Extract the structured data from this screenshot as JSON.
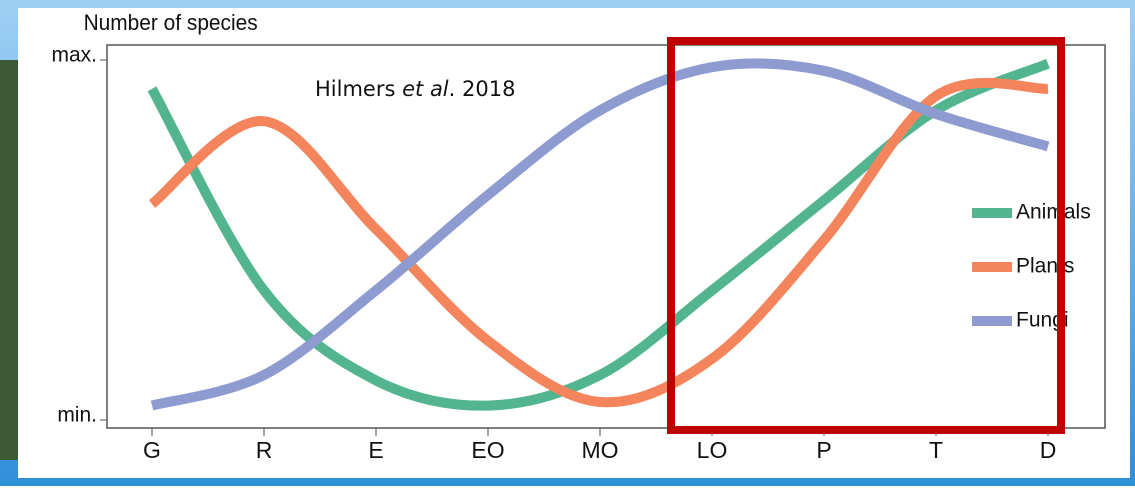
{
  "chart_data": {
    "type": "line",
    "y_label": "Number of species",
    "annotation": [
      "Hilmers",
      "et al",
      ". 2018"
    ],
    "categories": [
      "G",
      "R",
      "E",
      "EO",
      "MO",
      "LO",
      "P",
      "T",
      "D"
    ],
    "series": [
      {
        "name": "Animals",
        "color": "#52b58f",
        "values": [
          0.92,
          0.36,
          0.11,
          0.04,
          0.125,
          0.36,
          0.61,
          0.86,
          0.99
        ]
      },
      {
        "name": "Plants",
        "color": "#f4845b",
        "values": [
          0.6,
          0.83,
          0.53,
          0.22,
          0.05,
          0.17,
          0.5,
          0.9,
          0.92
        ]
      },
      {
        "name": "Fungi",
        "color": "#8d9bd0",
        "values": [
          0.04,
          0.125,
          0.36,
          0.625,
          0.86,
          0.98,
          0.97,
          0.85,
          0.76
        ]
      }
    ],
    "ylim": [
      0,
      1
    ],
    "yticks": [
      {
        "value": 0,
        "label": "min."
      },
      {
        "value": 1,
        "label": "max."
      }
    ],
    "highlight_color": "#c00000"
  }
}
